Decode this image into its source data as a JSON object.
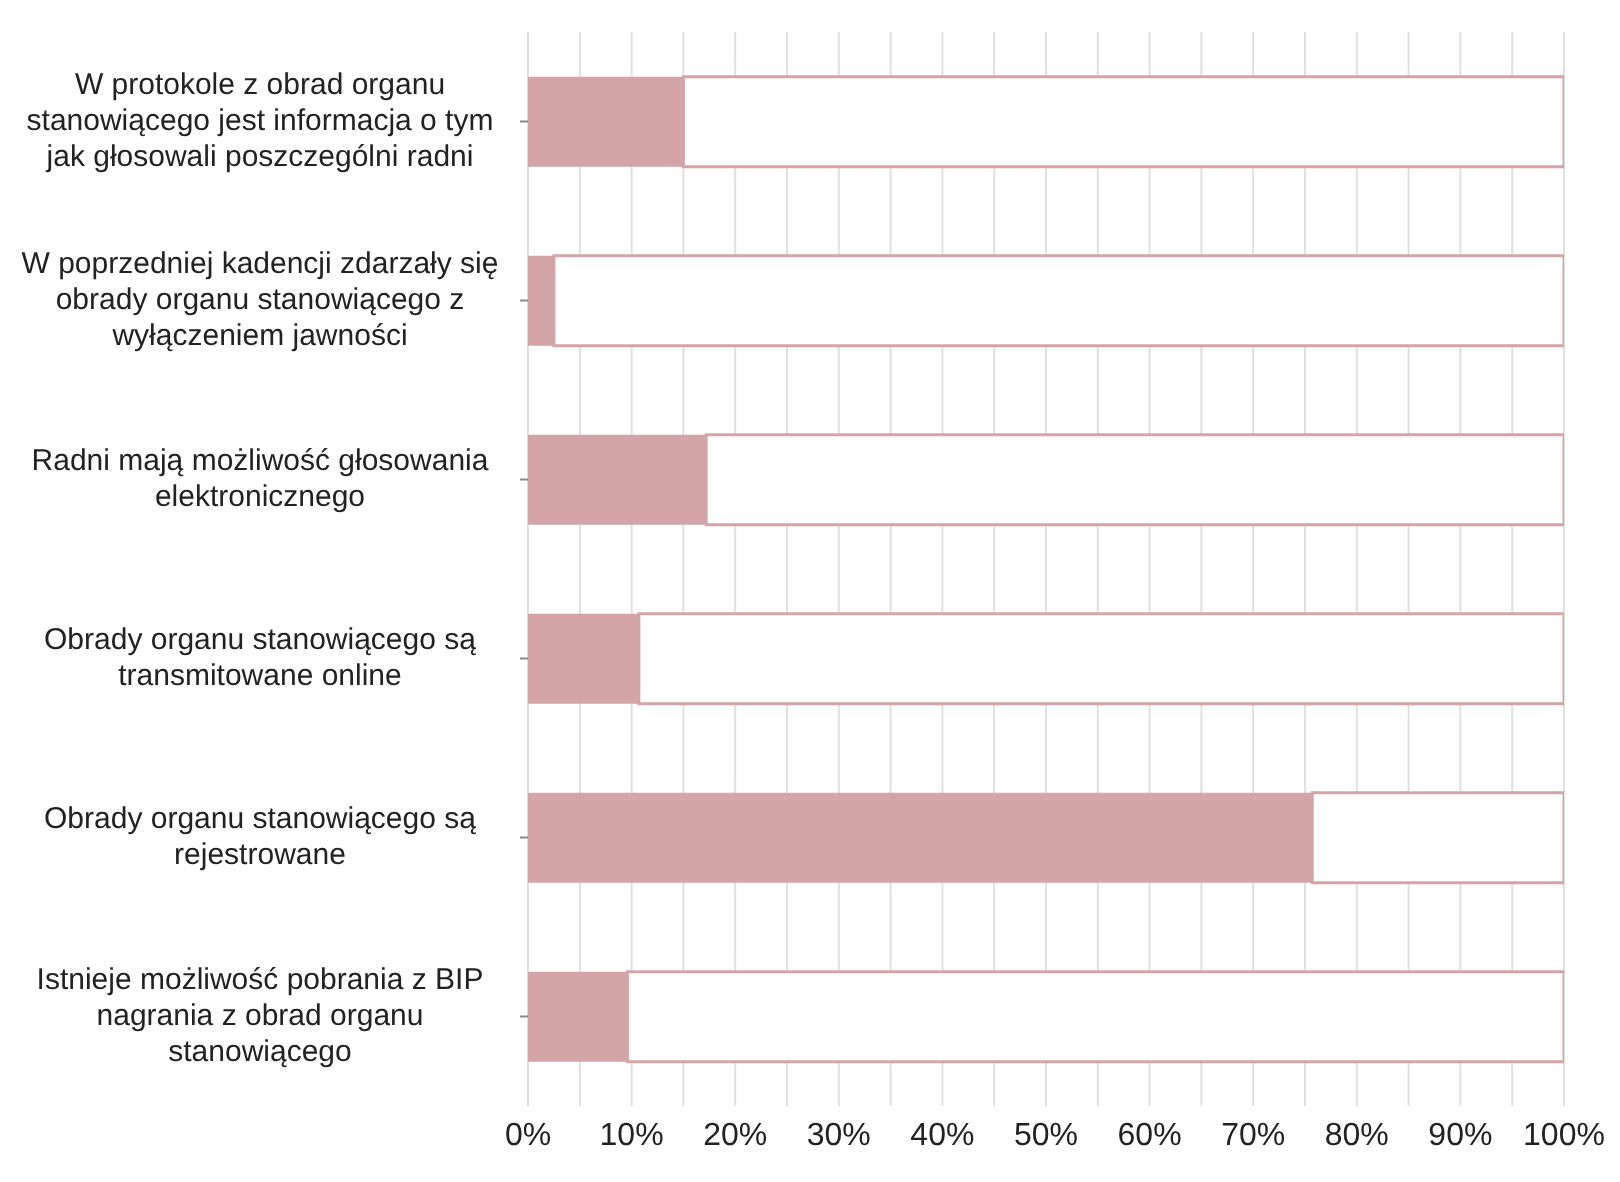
{
  "chart_data": {
    "type": "bar",
    "orientation": "horizontal",
    "stacked": true,
    "categories": [
      "W protokole z obrad organu stanowiącego jest informacja o tym jak głosowali poszczególni radni",
      "W poprzedniej kadencji zdarzały się obrady organu stanowiącego z wyłączeniem jawności",
      "Radni mają możliwość głosowania elektronicznego",
      "Obrady organu stanowiącego są transmitowane online",
      "Obrady organu stanowiącego są rejestrowane",
      "Istnieje możliwość pobrania z BIP nagrania z obrad organu stanowiącego"
    ],
    "series": [
      {
        "color": "#d3a5a6",
        "values": [
          15,
          2.5,
          17.2,
          10.7,
          75.7,
          9.6
        ]
      },
      {
        "color": "#ffffff",
        "values": [
          85,
          97.5,
          82.8,
          89.3,
          24.3,
          90.4
        ]
      }
    ],
    "xlim": [
      0,
      100
    ],
    "xticks": [
      {
        "value": 0,
        "label": "0%"
      },
      {
        "value": 5,
        "label": null
      },
      {
        "value": 10,
        "label": "10%"
      },
      {
        "value": 15,
        "label": null
      },
      {
        "value": 20,
        "label": "20%"
      },
      {
        "value": 25,
        "label": null
      },
      {
        "value": 30,
        "label": "30%"
      },
      {
        "value": 35,
        "label": null
      },
      {
        "value": 40,
        "label": "40%"
      },
      {
        "value": 45,
        "label": null
      },
      {
        "value": 50,
        "label": "50%"
      },
      {
        "value": 55,
        "label": null
      },
      {
        "value": 60,
        "label": "60%"
      },
      {
        "value": 65,
        "label": null
      },
      {
        "value": 70,
        "label": "70%"
      },
      {
        "value": 75,
        "label": null
      },
      {
        "value": 80,
        "label": "80%"
      },
      {
        "value": 85,
        "label": null
      },
      {
        "value": 90,
        "label": "90%"
      },
      {
        "value": 95,
        "label": null
      },
      {
        "value": 100,
        "label": "100%"
      }
    ],
    "grid": "x",
    "legend": false
  }
}
